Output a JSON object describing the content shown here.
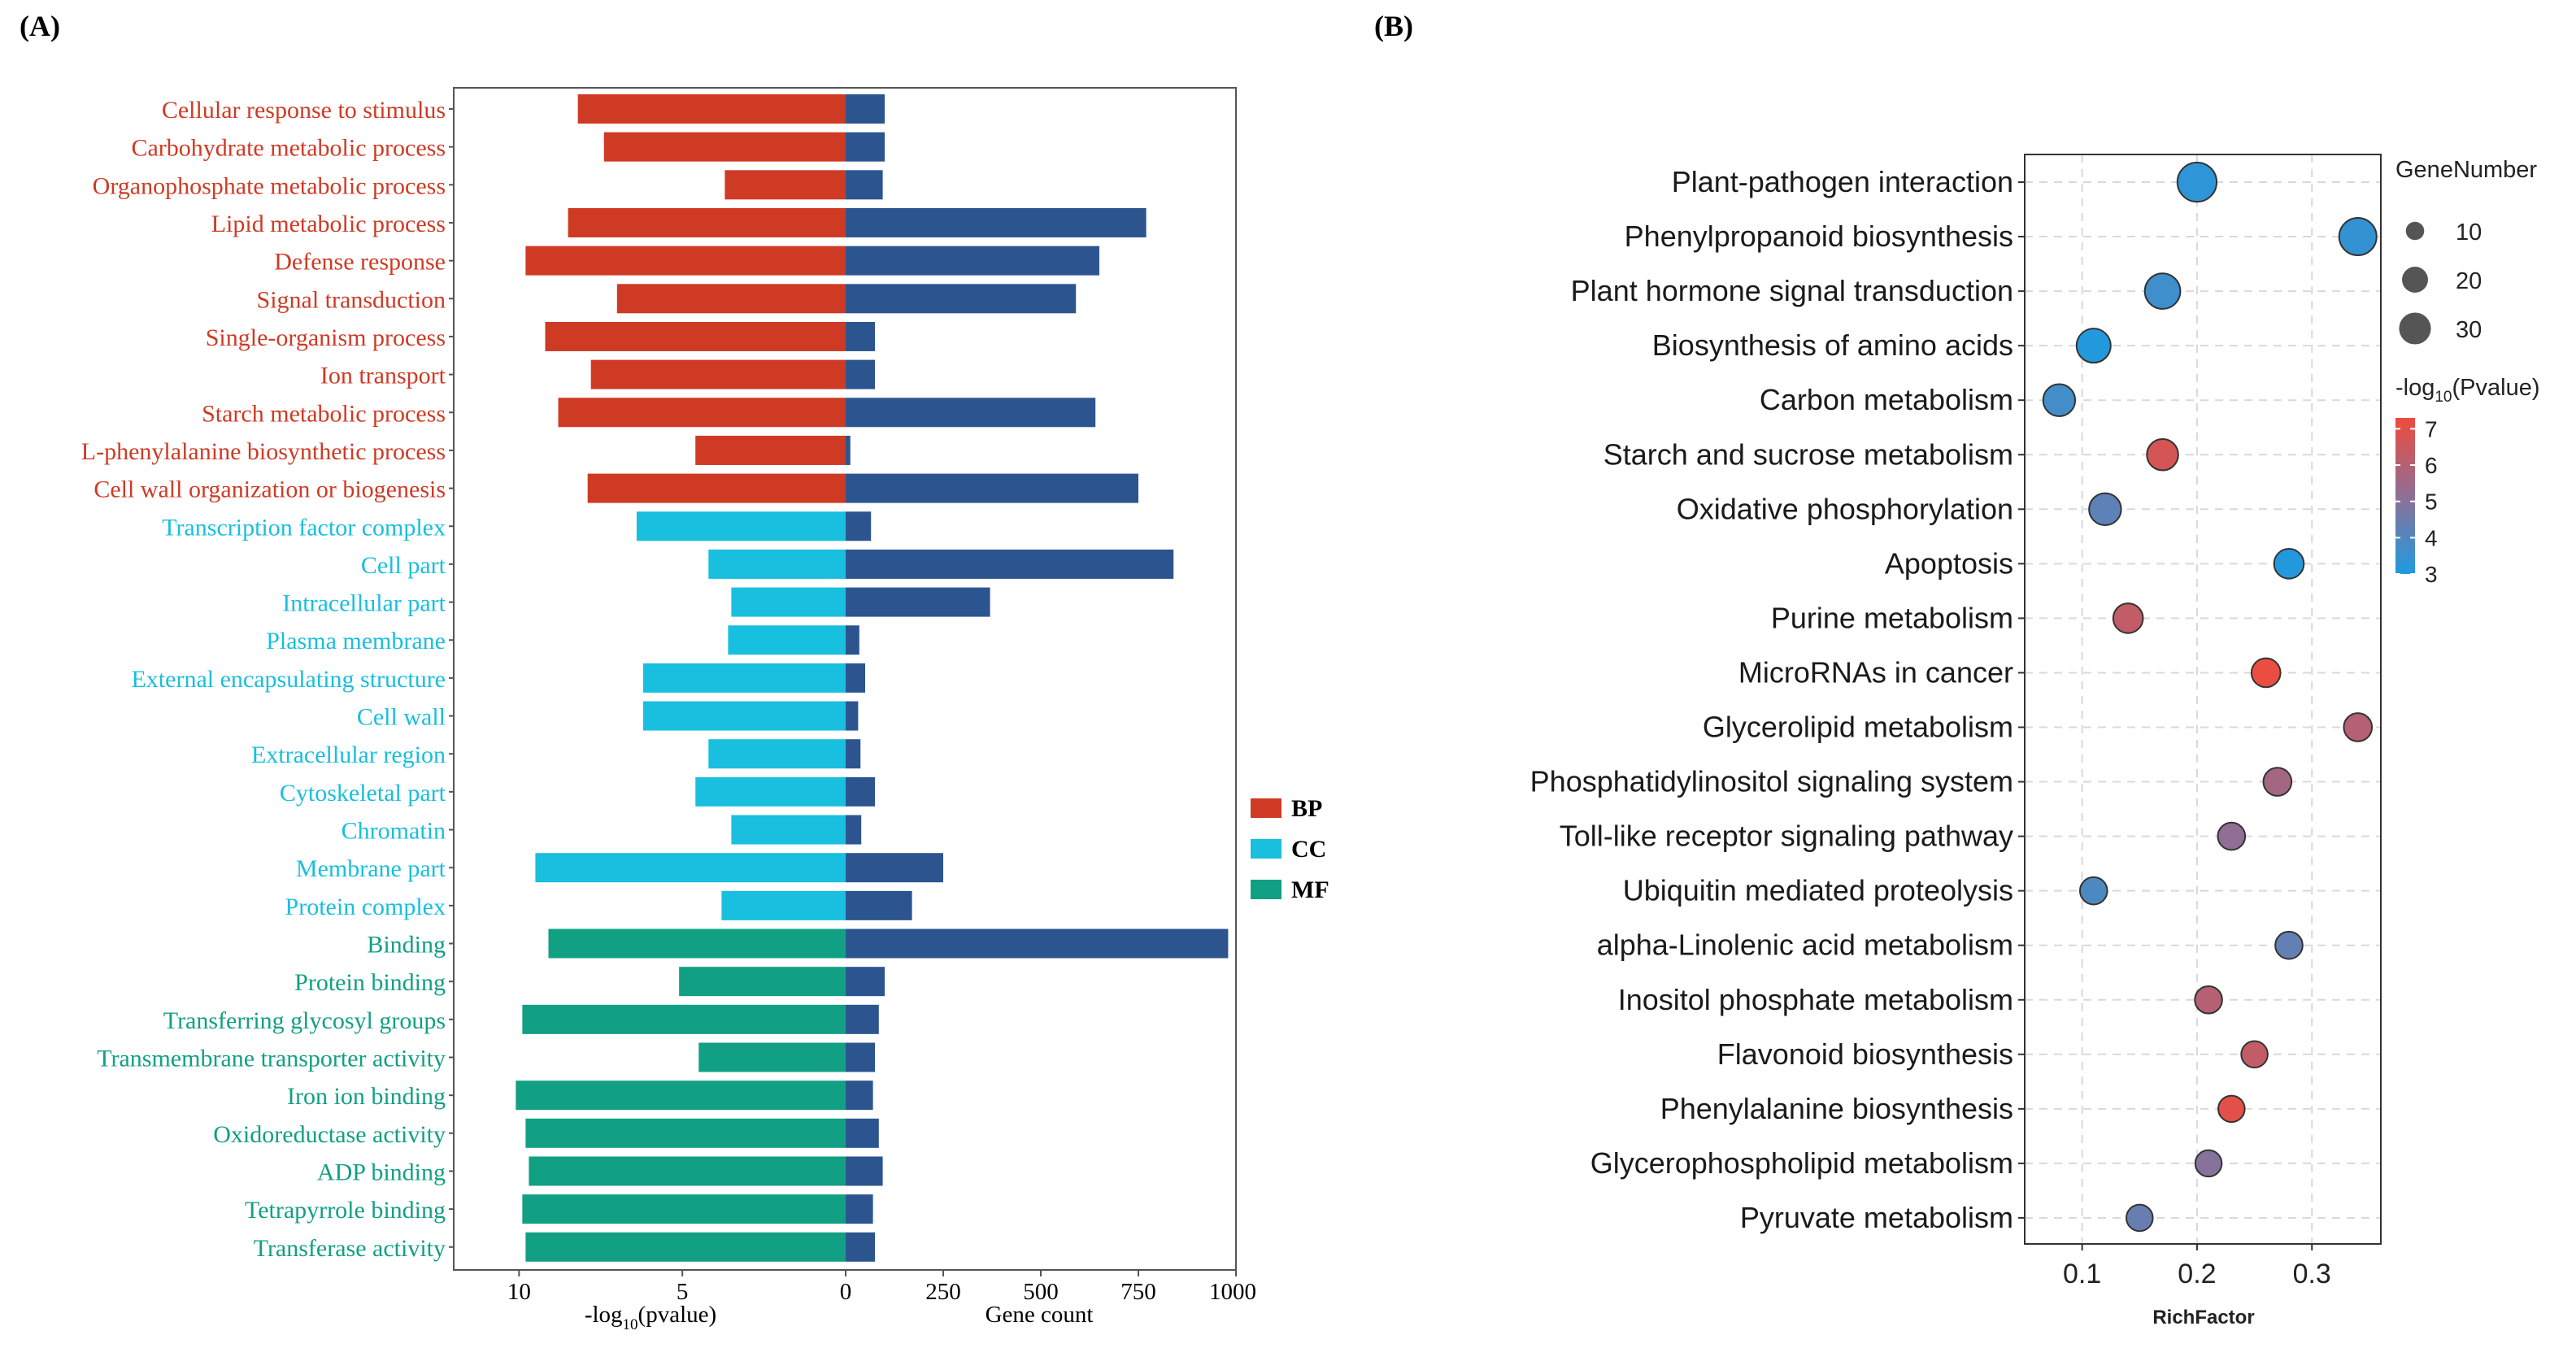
{
  "panel_labels": {
    "a": "(A)",
    "b": "(B)"
  },
  "colors": {
    "BP": "#cf3a24",
    "CC": "#18bfde",
    "MF": "#11a084",
    "gene_bar": "#2c5590",
    "grid": "#d9d9d9",
    "rich_low": "#1e9be0",
    "rich_mid": "#8f6f96",
    "rich_high": "#ee4b3d"
  },
  "chart_data": [
    {
      "type": "bar",
      "subtype": "diverging-horizontal-bar",
      "title": "",
      "left_axis": {
        "label_main": "-log",
        "label_sub": "10",
        "label_tail": "(pvalue)",
        "range": [
          12,
          0
        ],
        "ticks": [
          10,
          5,
          0
        ],
        "tick_labels": [
          "10",
          "5",
          "0"
        ]
      },
      "right_axis": {
        "label": "Gene count",
        "range": [
          0,
          1000
        ],
        "ticks": [
          0,
          250,
          500,
          750,
          1000
        ],
        "tick_labels": [
          "0",
          "250",
          "500",
          "750",
          "1000"
        ]
      },
      "legend": {
        "position": "right",
        "items": [
          {
            "key": "BP",
            "label": "BP"
          },
          {
            "key": "CC",
            "label": "CC"
          },
          {
            "key": "MF",
            "label": "MF"
          }
        ]
      },
      "categories": [
        {
          "label": "Cellular response to stimulus",
          "group": "BP",
          "neglog10p": 8.2,
          "gene_count": 100
        },
        {
          "label": "Carbohydrate metabolic process",
          "group": "BP",
          "neglog10p": 7.4,
          "gene_count": 100
        },
        {
          "label": "Organophosphate metabolic process",
          "group": "BP",
          "neglog10p": 3.7,
          "gene_count": 95
        },
        {
          "label": "Lipid metabolic process",
          "group": "BP",
          "neglog10p": 8.5,
          "gene_count": 770
        },
        {
          "label": "Defense response",
          "group": "BP",
          "neglog10p": 9.8,
          "gene_count": 650
        },
        {
          "label": "Signal transduction",
          "group": "BP",
          "neglog10p": 7.0,
          "gene_count": 590
        },
        {
          "label": "Single-organism process",
          "group": "BP",
          "neglog10p": 9.2,
          "gene_count": 75
        },
        {
          "label": "Ion transport",
          "group": "BP",
          "neglog10p": 7.8,
          "gene_count": 75
        },
        {
          "label": "Starch metabolic process",
          "group": "BP",
          "neglog10p": 8.8,
          "gene_count": 640
        },
        {
          "label": "L-phenylalanine biosynthetic process",
          "group": "BP",
          "neglog10p": 4.6,
          "gene_count": 12
        },
        {
          "label": "Cell wall organization or biogenesis",
          "group": "BP",
          "neglog10p": 7.9,
          "gene_count": 750
        },
        {
          "label": "Transcription factor complex",
          "group": "CC",
          "neglog10p": 6.4,
          "gene_count": 65
        },
        {
          "label": "Cell part",
          "group": "CC",
          "neglog10p": 4.2,
          "gene_count": 840
        },
        {
          "label": "Intracellular part",
          "group": "CC",
          "neglog10p": 3.5,
          "gene_count": 370
        },
        {
          "label": "Plasma membrane",
          "group": "CC",
          "neglog10p": 3.6,
          "gene_count": 35
        },
        {
          "label": "External encapsulating structure",
          "group": "CC",
          "neglog10p": 6.2,
          "gene_count": 50
        },
        {
          "label": "Cell wall",
          "group": "CC",
          "neglog10p": 6.2,
          "gene_count": 32
        },
        {
          "label": "Extracellular region",
          "group": "CC",
          "neglog10p": 4.2,
          "gene_count": 38
        },
        {
          "label": "Cytoskeletal part",
          "group": "CC",
          "neglog10p": 4.6,
          "gene_count": 75
        },
        {
          "label": "Chromatin",
          "group": "CC",
          "neglog10p": 3.5,
          "gene_count": 40
        },
        {
          "label": "Membrane part",
          "group": "CC",
          "neglog10p": 9.5,
          "gene_count": 250
        },
        {
          "label": "Protein complex",
          "group": "CC",
          "neglog10p": 3.8,
          "gene_count": 170
        },
        {
          "label": "Binding",
          "group": "MF",
          "neglog10p": 9.1,
          "gene_count": 980
        },
        {
          "label": "Protein binding",
          "group": "MF",
          "neglog10p": 5.1,
          "gene_count": 100
        },
        {
          "label": "Transferring glycosyl groups",
          "group": "MF",
          "neglog10p": 9.9,
          "gene_count": 85
        },
        {
          "label": "Transmembrane transporter activity",
          "group": "MF",
          "neglog10p": 4.5,
          "gene_count": 75
        },
        {
          "label": "Iron ion binding",
          "group": "MF",
          "neglog10p": 10.1,
          "gene_count": 70
        },
        {
          "label": "Oxidoreductase activity",
          "group": "MF",
          "neglog10p": 9.8,
          "gene_count": 85
        },
        {
          "label": "ADP binding",
          "group": "MF",
          "neglog10p": 9.7,
          "gene_count": 95
        },
        {
          "label": "Tetrapyrrole binding",
          "group": "MF",
          "neglog10p": 9.9,
          "gene_count": 70
        },
        {
          "label": "Transferase activity",
          "group": "MF",
          "neglog10p": 9.8,
          "gene_count": 75
        }
      ]
    },
    {
      "type": "scatter",
      "subtype": "bubble",
      "title": "",
      "xlabel": "RichFactor",
      "ylabel": "",
      "xlim": [
        0.05,
        0.36
      ],
      "x_ticks": [
        0.1,
        0.2,
        0.3
      ],
      "x_tick_labels": [
        "0.1",
        "0.2",
        "0.3"
      ],
      "grid": true,
      "size_legend": {
        "title": "GeneNumber",
        "values": [
          10,
          20,
          30
        ],
        "labels": [
          "10",
          "20",
          "30"
        ]
      },
      "color_legend": {
        "title_main": "-log",
        "title_sub": "10",
        "title_tail": "(Pvalue)",
        "range": [
          3,
          7.3
        ],
        "ticks": [
          7,
          6,
          5,
          4,
          3
        ],
        "tick_labels": [
          "7",
          "6",
          "5",
          "4",
          "3"
        ]
      },
      "points": [
        {
          "label": "Plant-pathogen interaction",
          "rich_factor": 0.2,
          "gene_number": 33,
          "neglog10p": 3.3
        },
        {
          "label": "Phenylpropanoid biosynthesis",
          "rich_factor": 0.34,
          "gene_number": 30,
          "neglog10p": 3.4
        },
        {
          "label": "Plant hormone signal transduction",
          "rich_factor": 0.17,
          "gene_number": 27,
          "neglog10p": 3.6
        },
        {
          "label": "Biosynthesis of amino acids",
          "rich_factor": 0.11,
          "gene_number": 25,
          "neglog10p": 3.1
        },
        {
          "label": "Carbon metabolism",
          "rich_factor": 0.08,
          "gene_number": 22,
          "neglog10p": 3.7
        },
        {
          "label": "Starch and sucrose metabolism",
          "rich_factor": 0.17,
          "gene_number": 21,
          "neglog10p": 6.7
        },
        {
          "label": "Oxidative phosphorylation",
          "rich_factor": 0.12,
          "gene_number": 22,
          "neglog10p": 4.2
        },
        {
          "label": "Apoptosis",
          "rich_factor": 0.28,
          "gene_number": 19,
          "neglog10p": 3.1
        },
        {
          "label": "Purine metabolism",
          "rich_factor": 0.14,
          "gene_number": 19,
          "neglog10p": 6.3
        },
        {
          "label": "MicroRNAs in cancer",
          "rich_factor": 0.26,
          "gene_number": 18,
          "neglog10p": 7.2
        },
        {
          "label": "Glycerolipid metabolism",
          "rich_factor": 0.34,
          "gene_number": 17,
          "neglog10p": 6.0
        },
        {
          "label": "Phosphatidylinositol signaling system",
          "rich_factor": 0.27,
          "gene_number": 17,
          "neglog10p": 5.6
        },
        {
          "label": "Toll-like receptor signaling pathway",
          "rich_factor": 0.23,
          "gene_number": 16,
          "neglog10p": 5.2
        },
        {
          "label": "Ubiquitin mediated proteolysis",
          "rich_factor": 0.11,
          "gene_number": 16,
          "neglog10p": 3.9
        },
        {
          "label": "alpha-Linolenic acid metabolism",
          "rich_factor": 0.28,
          "gene_number": 16,
          "neglog10p": 4.3
        },
        {
          "label": "Inositol phosphate metabolism",
          "rich_factor": 0.21,
          "gene_number": 16,
          "neglog10p": 6.0
        },
        {
          "label": "Flavonoid biosynthesis",
          "rich_factor": 0.25,
          "gene_number": 15,
          "neglog10p": 6.3
        },
        {
          "label": "Phenylalanine biosynthesis",
          "rich_factor": 0.23,
          "gene_number": 15,
          "neglog10p": 7.0
        },
        {
          "label": "Glycerophospholipid metabolism",
          "rich_factor": 0.21,
          "gene_number": 15,
          "neglog10p": 5.0
        },
        {
          "label": "Pyruvate metabolism",
          "rich_factor": 0.15,
          "gene_number": 15,
          "neglog10p": 4.4
        }
      ]
    }
  ]
}
